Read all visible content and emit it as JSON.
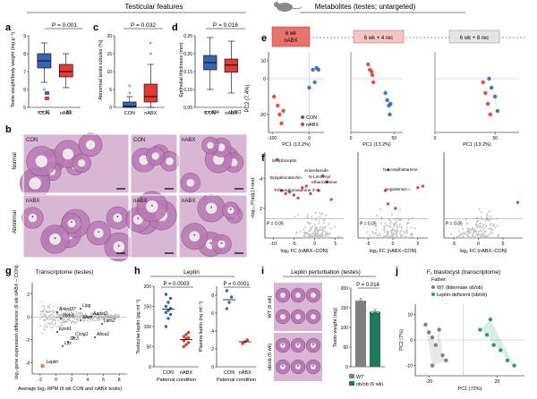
{
  "header": {
    "testicular_features": "Testicular features",
    "metabolites": "Metabolites (testes; untargeted)"
  },
  "colors": {
    "con": "#3a64b2",
    "nabx": "#e23b35",
    "green": "#2a9a78",
    "gray": "#7f7f7f",
    "darkgreen": "#1f7a5c"
  },
  "panels": {
    "a": {
      "letter": "a",
      "pvalue": "P = 0.001",
      "ylabel": "Testis weight/body weight (mg g⁻¹)",
      "n_label": "n = 31",
      "n_value": "32",
      "ticks": [
        "5",
        "6",
        "7",
        "8",
        "9"
      ],
      "groups": [
        "CON",
        "nABX"
      ]
    },
    "c": {
      "letter": "c",
      "pvalue": "P = 0.032",
      "ylabel": "Abnormal testis tubules (%)",
      "ticks": [
        "0",
        "5",
        "10",
        "15",
        "20"
      ],
      "groups": [
        "CON",
        "nABX"
      ]
    },
    "d": {
      "letter": "d",
      "pvalue": "P = 0.016",
      "ylabel": "Epithelial thickness (mm)",
      "n_label": "n = 934",
      "n_value": "1,061",
      "ticks": [
        "0.05",
        "0.10",
        "0.15",
        "0.20",
        "0.25"
      ],
      "groups": [
        "CON",
        "nABX"
      ]
    },
    "b": {
      "letter": "b",
      "rows": [
        "Normal",
        "Abnormal"
      ],
      "tiles": [
        "CON",
        "CON",
        "nABX",
        "nABX",
        "nABX",
        "nABX"
      ]
    },
    "e": {
      "letter": "e",
      "timepoints": [
        "6 wk\nnABX",
        "6 wk + 4 rec",
        "6 wk + 8 rec"
      ],
      "ylabel": "PC2 (7.4%)",
      "xlabel": "PC1 (13.2%)",
      "legend": [
        "CON",
        "nABX"
      ],
      "ticks_y": [
        "10",
        "0",
        "-20"
      ],
      "ticks_x1": [
        "-100",
        "0"
      ],
      "ticks_x2": [
        "0",
        "50"
      ],
      "ticks_x3": [
        "0",
        "50"
      ]
    },
    "f": {
      "letter": "f",
      "ylabel": "−log₁₀ P(adj.) t-test",
      "xlabel": "log₂ FC (nABX−CON)",
      "pline": "P = 0.05",
      "labels1": [
        "Morphiceptin",
        "Anandamide",
        "Epigallocatechin",
        "N-Linoleoyl",
        "ethanolamine",
        "Trifexeglucosamine 3-S"
      ],
      "labels2": [
        "N-Acetylhistamine",
        "Angiotensin I"
      ],
      "ticks_y": [
        "2",
        "4"
      ],
      "ticks_x1": [
        "-10",
        "-5",
        "0",
        "5"
      ],
      "ticks_x2": [
        "-5",
        "0",
        "5"
      ],
      "ticks_x3": [
        "-5",
        "0",
        "5"
      ]
    },
    "g": {
      "letter": "g",
      "title": "Transcriptome (testes)",
      "ylabel": "log₂ gene expression difference (6 wk nABX − CON)",
      "xlabel": "Average log₂ RPM (6 wk CON and nABX testis)",
      "genes": [
        "Ankrd37",
        "Mybl6",
        "Lipg",
        "Star",
        "Aadat2",
        "Lars2",
        "Epsti1",
        "Ccng1",
        "Slc3",
        "Abca1",
        "Lyz",
        "Leptin"
      ],
      "ticks_x": [
        "-2",
        "0",
        "2",
        "4",
        "6",
        "8"
      ],
      "ticks_y": [
        "-4",
        "-2",
        "0",
        "2"
      ]
    },
    "h": {
      "letter": "h",
      "title": "Leptin",
      "p1": "P = 0.0003",
      "p2": "P = 0.0001",
      "ylabel1": "Testicular leptin (pg ml⁻¹)",
      "ylabel2": "Plasma leptin (ng ml⁻¹)",
      "xlabel": "Paternal condition",
      "groups": [
        "CON",
        "nABX"
      ],
      "ticks1": [
        "0",
        "50",
        "100",
        "150",
        "200"
      ],
      "ticks2": [
        "0",
        "2",
        "4",
        "6",
        "8"
      ]
    },
    "i": {
      "letter": "i",
      "title": "Leptin perturbation (testes)",
      "pvalue": "P = 0.014",
      "ylabel": "Testis weight (mg)",
      "rowlabels": [
        "WT (6 wk)",
        "ob/ob (6 wk)"
      ],
      "legend": [
        "WT",
        "ob/ob (6 wk)"
      ],
      "ticks": [
        "0",
        "50",
        "100",
        "150",
        "200"
      ]
    },
    "j": {
      "letter": "j",
      "title": "F₁ blastocyst (transcriptome)",
      "father": "Father:",
      "legend": [
        "WT (littermate ob/ob)",
        "Leptin-deficient (ob/ob)"
      ],
      "xlabel": "PC1 (72%)",
      "ylabel": "PC2 (7%)",
      "ticks_x": [
        "-20",
        "20"
      ],
      "ticks_y": [
        "10",
        "0",
        "-10"
      ]
    }
  },
  "chart_data": [
    {
      "id": "a",
      "type": "box",
      "title": "",
      "ylabel": "Testis weight/body weight (mg g⁻¹)",
      "ylim": [
        5,
        9
      ],
      "series": [
        {
          "name": "CON",
          "q1": 7.2,
          "median": 7.6,
          "q3": 8.0,
          "whisker_low": 6.4,
          "whisker_high": 8.6,
          "outliers": [
            6.0
          ]
        },
        {
          "name": "nABX",
          "q1": 6.7,
          "median": 7.0,
          "q3": 7.4,
          "whisker_low": 6.1,
          "whisker_high": 8.0,
          "outliers": []
        }
      ]
    },
    {
      "id": "c",
      "type": "box",
      "ylabel": "Abnormal testis tubules (%)",
      "ylim": [
        0,
        20
      ],
      "series": [
        {
          "name": "CON",
          "q1": 0,
          "median": 0.3,
          "q3": 1.5,
          "whisker_low": 0,
          "whisker_high": 3,
          "outliers": [
            4,
            6
          ]
        },
        {
          "name": "nABX",
          "q1": 1.5,
          "median": 3.0,
          "q3": 6.5,
          "whisker_low": 0,
          "whisker_high": 12,
          "outliers": [
            15,
            18
          ]
        }
      ]
    },
    {
      "id": "d",
      "type": "box",
      "ylabel": "Epithelial thickness (mm)",
      "ylim": [
        0.05,
        0.25
      ],
      "series": [
        {
          "name": "CON",
          "q1": 0.155,
          "median": 0.175,
          "q3": 0.195,
          "whisker_low": 0.1,
          "whisker_high": 0.245,
          "outliers": []
        },
        {
          "name": "nABX",
          "q1": 0.148,
          "median": 0.168,
          "q3": 0.185,
          "whisker_low": 0.09,
          "whisker_high": 0.235,
          "outliers": []
        }
      ]
    },
    {
      "id": "e",
      "type": "scatter",
      "xlabel": "PC1 (13.2%)",
      "ylabel": "PC2 (7.4%)",
      "subplots": [
        {
          "timepoint": "6 wk nABX",
          "series": [
            {
              "name": "CON",
              "points": [
                [
                  0,
                  -5
                ],
                [
                  10,
                  5
                ],
                [
                  20,
                  6
                ],
                [
                  15,
                  -2
                ],
                [
                  25,
                  5
                ]
              ]
            },
            {
              "name": "nABX",
              "points": [
                [
                  -95,
                  -10
                ],
                [
                  -85,
                  -15
                ],
                [
                  -80,
                  -20
                ],
                [
                  -75,
                  -25
                ],
                [
                  -70,
                  -18
                ]
              ]
            }
          ]
        },
        {
          "timepoint": "6 wk + 4 rec",
          "series": [
            {
              "name": "CON",
              "points": [
                [
                  40,
                  -8
                ],
                [
                  42,
                  -12
                ],
                [
                  44,
                  -15
                ],
                [
                  45,
                  -20
                ],
                [
                  46,
                  -14
                ]
              ]
            },
            {
              "name": "nABX",
              "points": [
                [
                  20,
                  8
                ],
                [
                  22,
                  5
                ],
                [
                  25,
                  2
                ],
                [
                  26,
                  -2
                ],
                [
                  24,
                  4
                ]
              ]
            }
          ]
        },
        {
          "timepoint": "6 wk + 8 rec",
          "series": [
            {
              "name": "CON",
              "points": [
                [
                  45,
                  0
                ],
                [
                  47,
                  -5
                ],
                [
                  50,
                  -10
                ],
                [
                  52,
                  -18
                ]
              ]
            },
            {
              "name": "nABX",
              "points": [
                [
                  40,
                  -2
                ],
                [
                  42,
                  -8
                ],
                [
                  44,
                  -14
                ],
                [
                  46,
                  -20
                ]
              ]
            }
          ]
        }
      ]
    },
    {
      "id": "f",
      "type": "scatter",
      "xlabel": "log₂ FC (nABX−CON)",
      "ylabel": "−log₁₀ P(adj.) t-test",
      "subplots": [
        {
          "significant": [
            [
              -9,
              5.3
            ],
            [
              -8,
              3.2
            ],
            [
              -7,
              3.0
            ],
            [
              -6,
              3.1
            ],
            [
              -5,
              2.9
            ],
            [
              -4,
              2.7
            ],
            [
              -3,
              3.4
            ],
            [
              -2,
              3.5
            ],
            [
              -1,
              3.0
            ],
            [
              1,
              3.2
            ],
            [
              2,
              4.2
            ],
            [
              3,
              3.8
            ],
            [
              4,
              2.6
            ]
          ]
        },
        {
          "significant": [
            [
              -1,
              4.6
            ],
            [
              -1.5,
              3.2
            ],
            [
              -1,
              2.3
            ],
            [
              0.5,
              2.0
            ],
            [
              5,
              3.4
            ],
            [
              6,
              3.5
            ]
          ]
        },
        {
          "significant": [
            [
              8,
              2.4
            ]
          ]
        }
      ]
    },
    {
      "id": "h",
      "type": "dot",
      "ylabel": [
        "Testicular leptin (pg ml⁻¹)",
        "Plasma leptin (ng ml⁻¹)"
      ],
      "series": [
        {
          "panel": 1,
          "CON": [
            100,
            120,
            130,
            135,
            140,
            145,
            150,
            160,
            170,
            180
          ],
          "nABX": [
            50,
            55,
            60,
            65,
            70,
            72,
            75,
            80,
            85
          ]
        },
        {
          "panel": 2,
          "CON": [
            6.5,
            7.2,
            7.8,
            8.5
          ],
          "nABX": [
            2.6,
            2.8,
            3.0
          ]
        }
      ]
    },
    {
      "id": "i",
      "type": "bar",
      "categories": [
        "WT",
        "ob/ob (6 wk)"
      ],
      "values": [
        168,
        140
      ],
      "ylim": [
        0,
        200
      ]
    },
    {
      "id": "j",
      "type": "scatter",
      "xlabel": "PC1 (72%)",
      "ylabel": "PC2 (7%)",
      "series": [
        {
          "name": "WT (littermate ob/ob)",
          "points": [
            [
              -22,
              6
            ],
            [
              -20,
              3
            ],
            [
              -18,
              1
            ],
            [
              -16,
              -2
            ],
            [
              -14,
              4
            ],
            [
              -12,
              -6
            ],
            [
              -10,
              -8
            ],
            [
              -18,
              -10
            ]
          ]
        },
        {
          "name": "Leptin-deficient (ob/ob)",
          "points": [
            [
              10,
              4
            ],
            [
              14,
              2
            ],
            [
              18,
              -2
            ],
            [
              22,
              -4
            ],
            [
              26,
              -8
            ],
            [
              30,
              -10
            ],
            [
              16,
              8
            ]
          ]
        }
      ]
    }
  ]
}
